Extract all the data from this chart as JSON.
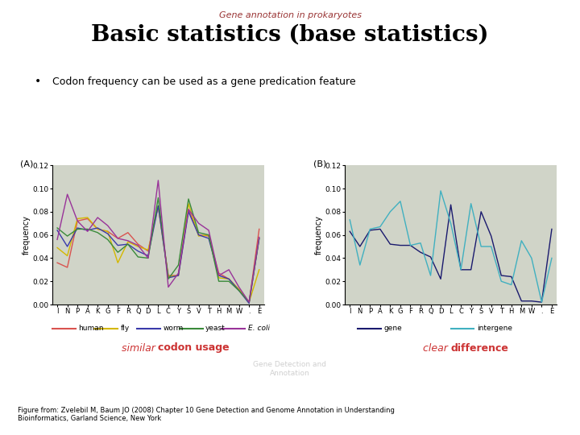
{
  "title_sub": "Gene annotation in prokaryotes",
  "title_main": "Basic statistics (base statistics)",
  "bullet": "Codon frequency can be used as a gene predication feature",
  "xlabel_ticks": [
    "I",
    "N",
    "P",
    "A",
    "K",
    "G",
    "F",
    "R",
    "Q",
    "D",
    "L",
    "C",
    "Y",
    "S",
    "V",
    "T",
    "H",
    "M",
    "W",
    ".",
    "E"
  ],
  "panel_A_label": "(A)",
  "panel_B_label": "(B)",
  "panel_A": {
    "human": [
      0.036,
      0.032,
      0.072,
      0.074,
      0.065,
      0.063,
      0.057,
      0.062,
      0.052,
      0.046,
      0.085,
      0.025,
      0.025,
      0.082,
      0.06,
      0.059,
      0.027,
      0.022,
      0.013,
      0.002,
      0.065
    ],
    "fly": [
      0.049,
      0.042,
      0.074,
      0.075,
      0.065,
      0.063,
      0.036,
      0.054,
      0.05,
      0.047,
      0.085,
      0.024,
      0.025,
      0.087,
      0.059,
      0.06,
      0.023,
      0.022,
      0.013,
      0.002,
      0.03
    ],
    "worm": [
      0.064,
      0.05,
      0.066,
      0.064,
      0.066,
      0.061,
      0.051,
      0.052,
      0.046,
      0.042,
      0.085,
      0.023,
      0.025,
      0.08,
      0.06,
      0.057,
      0.025,
      0.022,
      0.012,
      0.001,
      0.057
    ],
    "yeast": [
      0.066,
      0.059,
      0.065,
      0.065,
      0.062,
      0.056,
      0.045,
      0.052,
      0.041,
      0.04,
      0.092,
      0.022,
      0.034,
      0.091,
      0.062,
      0.06,
      0.02,
      0.02,
      0.012,
      0.002,
      0.057
    ],
    "ecoli": [
      0.056,
      0.095,
      0.072,
      0.063,
      0.075,
      0.068,
      0.057,
      0.055,
      0.051,
      0.04,
      0.107,
      0.015,
      0.027,
      0.082,
      0.07,
      0.064,
      0.025,
      0.03,
      0.015,
      0.002,
      0.058
    ]
  },
  "panel_B": {
    "gene": [
      0.063,
      0.05,
      0.064,
      0.065,
      0.052,
      0.051,
      0.051,
      0.045,
      0.041,
      0.022,
      0.086,
      0.03,
      0.03,
      0.08,
      0.059,
      0.025,
      0.024,
      0.003,
      0.003,
      0.002,
      0.065
    ],
    "intergene": [
      0.073,
      0.034,
      0.065,
      0.067,
      0.08,
      0.089,
      0.051,
      0.053,
      0.025,
      0.098,
      0.07,
      0.03,
      0.087,
      0.05,
      0.05,
      0.02,
      0.017,
      0.055,
      0.04,
      0.002,
      0.04
    ]
  },
  "colors": {
    "human": "#d9534f",
    "fly": "#d4b800",
    "worm": "#3a3aaa",
    "yeast": "#3a8a3a",
    "ecoli": "#993399",
    "gene": "#1a1a6e",
    "intergene": "#40b0c0"
  },
  "bg_color": "#d0d4c8",
  "ylim": [
    0.0,
    0.12
  ],
  "yticks": [
    0.0,
    0.02,
    0.04,
    0.06,
    0.08,
    0.1,
    0.12
  ],
  "caption": "Figure from: Zvelebil M, Baum JO (2008) Chapter 10 Gene Detection and Genome Annotation in Understanding\nBioinformatics, Garland Science, New York",
  "watermark": "Gene Detection and\nAnnotation",
  "title_sub_color": "#993333"
}
